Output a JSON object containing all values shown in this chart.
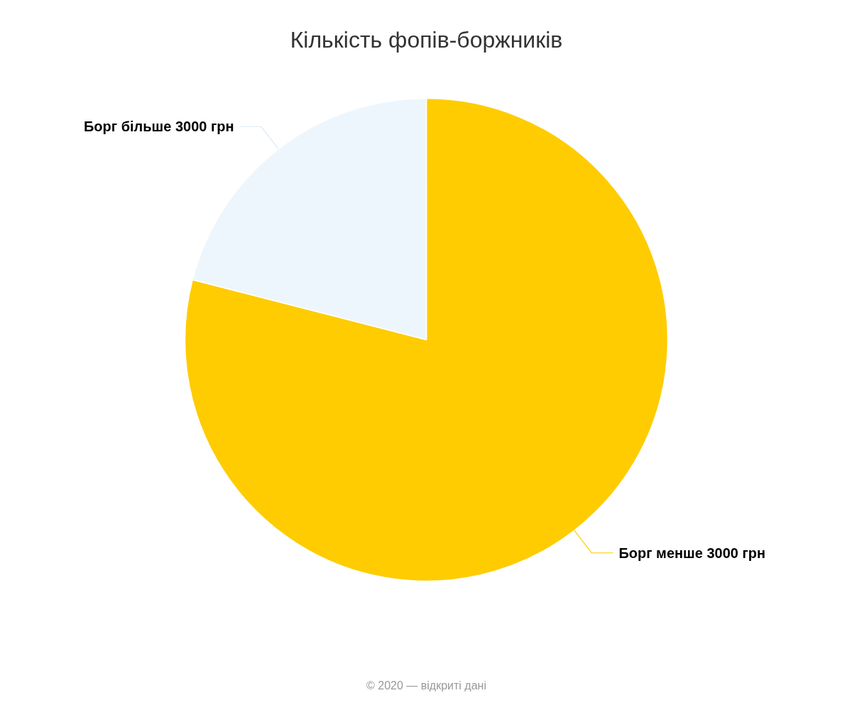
{
  "chart_data": {
    "type": "pie",
    "title": "Кількість фопів-боржників",
    "categories": [
      "Борг менше 3000 грн",
      "Борг більше 3000 грн"
    ],
    "values": [
      79,
      21
    ],
    "colors": [
      "#fecc00",
      "#eef6fd"
    ],
    "annotations": [
      "© 2020 — відкриті дані"
    ]
  }
}
